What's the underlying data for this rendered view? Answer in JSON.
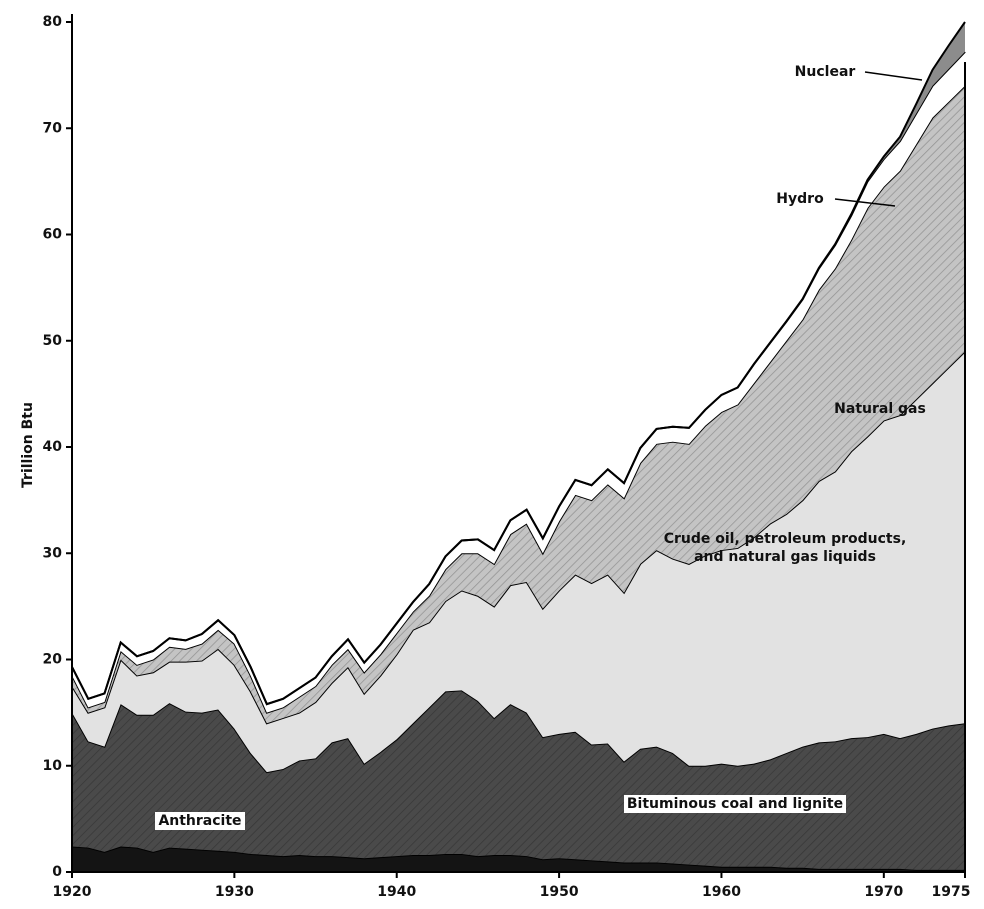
{
  "chart_data": {
    "type": "stacked_area",
    "y_label": "Trillion Btu",
    "x": [
      1920,
      1921,
      1922,
      1923,
      1924,
      1925,
      1926,
      1927,
      1928,
      1929,
      1930,
      1931,
      1932,
      1933,
      1934,
      1935,
      1936,
      1937,
      1938,
      1939,
      1940,
      1941,
      1942,
      1943,
      1944,
      1945,
      1946,
      1947,
      1948,
      1949,
      1950,
      1951,
      1952,
      1953,
      1954,
      1955,
      1956,
      1957,
      1958,
      1959,
      1960,
      1961,
      1962,
      1963,
      1964,
      1965,
      1966,
      1967,
      1968,
      1969,
      1970,
      1971,
      1972,
      1973,
      1974,
      1975
    ],
    "xlim": [
      1920,
      1975
    ],
    "xticks": [
      1920,
      1930,
      1940,
      1950,
      1960,
      1970,
      1975
    ],
    "ylim": [
      0,
      80
    ],
    "yticks": [
      0,
      10,
      20,
      30,
      40,
      50,
      60,
      70,
      80
    ],
    "series": [
      {
        "name": "Anthracite",
        "color": "#141414",
        "values": [
          2.4,
          2.3,
          1.9,
          2.4,
          2.3,
          1.9,
          2.3,
          2.2,
          2.1,
          2.0,
          1.9,
          1.7,
          1.6,
          1.5,
          1.6,
          1.5,
          1.5,
          1.4,
          1.3,
          1.4,
          1.5,
          1.6,
          1.6,
          1.7,
          1.7,
          1.5,
          1.6,
          1.6,
          1.5,
          1.2,
          1.3,
          1.2,
          1.1,
          1.0,
          0.9,
          0.9,
          0.9,
          0.8,
          0.7,
          0.6,
          0.5,
          0.5,
          0.5,
          0.5,
          0.4,
          0.4,
          0.3,
          0.3,
          0.3,
          0.3,
          0.3,
          0.3,
          0.2,
          0.2,
          0.2,
          0.2
        ]
      },
      {
        "name": "Bituminous coal and lignite",
        "color": "#4a4a4a",
        "values": [
          12.6,
          10.0,
          9.9,
          13.4,
          12.5,
          12.9,
          13.6,
          12.9,
          12.9,
          13.3,
          11.6,
          9.5,
          7.8,
          8.2,
          8.9,
          9.2,
          10.7,
          11.2,
          8.9,
          9.9,
          11.0,
          12.4,
          13.9,
          15.3,
          15.4,
          14.6,
          12.9,
          14.2,
          13.5,
          11.5,
          11.7,
          12.0,
          10.9,
          11.1,
          9.5,
          10.7,
          10.9,
          10.4,
          9.3,
          9.4,
          9.7,
          9.5,
          9.7,
          10.1,
          10.8,
          11.4,
          11.9,
          12.0,
          12.3,
          12.4,
          12.7,
          12.3,
          12.8,
          13.3,
          13.6,
          13.8
        ]
      },
      {
        "name": "Crude oil, petroleum products, and natural gas liquids",
        "color": "#e2e2e2",
        "values": [
          2.5,
          2.7,
          3.7,
          4.2,
          3.7,
          4.0,
          3.9,
          4.7,
          4.9,
          5.7,
          6.0,
          5.8,
          4.6,
          4.8,
          4.5,
          5.3,
          5.6,
          6.7,
          6.6,
          7.2,
          8.0,
          8.8,
          8.0,
          8.5,
          9.4,
          9.9,
          10.5,
          11.2,
          12.3,
          12.1,
          13.5,
          14.8,
          15.2,
          15.9,
          15.9,
          17.4,
          18.5,
          18.3,
          19.0,
          19.8,
          20.1,
          20.5,
          21.3,
          22.2,
          22.5,
          23.2,
          24.6,
          25.4,
          27.0,
          28.3,
          29.5,
          30.4,
          31.5,
          32.5,
          33.7,
          35.0
        ]
      },
      {
        "name": "Natural gas",
        "color": "#c4c4c4",
        "values": [
          1.0,
          0.5,
          0.5,
          0.8,
          1.0,
          1.2,
          1.4,
          1.2,
          1.6,
          1.8,
          2.0,
          1.5,
          1.0,
          1.0,
          1.5,
          1.5,
          1.7,
          1.7,
          2.0,
          2.0,
          2.0,
          1.7,
          2.5,
          3.0,
          3.5,
          4.0,
          4.0,
          4.8,
          5.5,
          5.2,
          6.5,
          7.5,
          7.8,
          8.5,
          8.9,
          9.5,
          10.0,
          11.0,
          11.3,
          12.2,
          13.0,
          13.5,
          14.5,
          15.2,
          16.3,
          17.0,
          18.0,
          19.1,
          19.9,
          21.5,
          22.0,
          23.0,
          24.0,
          25.0,
          25.0,
          25.0
        ]
      },
      {
        "name": "Hydro",
        "color": "#ffffff",
        "values": [
          0.8,
          0.8,
          0.8,
          0.8,
          0.8,
          0.8,
          0.8,
          0.8,
          0.9,
          0.9,
          0.8,
          0.8,
          0.8,
          0.8,
          0.8,
          0.8,
          0.8,
          0.9,
          0.9,
          0.9,
          0.9,
          0.9,
          1.1,
          1.2,
          1.2,
          1.3,
          1.3,
          1.3,
          1.3,
          1.4,
          1.4,
          1.4,
          1.4,
          1.4,
          1.4,
          1.4,
          1.4,
          1.4,
          1.5,
          1.5,
          1.6,
          1.6,
          1.8,
          1.8,
          1.8,
          1.9,
          2.0,
          2.2,
          2.3,
          2.5,
          2.6,
          2.8,
          2.9,
          3.0,
          3.1,
          3.2
        ]
      },
      {
        "name": "Nuclear",
        "color": "#8c8c8c",
        "values": [
          0,
          0,
          0,
          0,
          0,
          0,
          0,
          0,
          0,
          0,
          0,
          0,
          0,
          0,
          0,
          0,
          0,
          0,
          0,
          0,
          0,
          0,
          0,
          0,
          0,
          0,
          0,
          0,
          0,
          0,
          0,
          0,
          0,
          0,
          0,
          0,
          0,
          0,
          0,
          0,
          0,
          0,
          0,
          0.03,
          0.04,
          0.04,
          0.06,
          0.09,
          0.13,
          0.15,
          0.24,
          0.4,
          0.9,
          1.5,
          2.2,
          2.8
        ]
      }
    ]
  }
}
